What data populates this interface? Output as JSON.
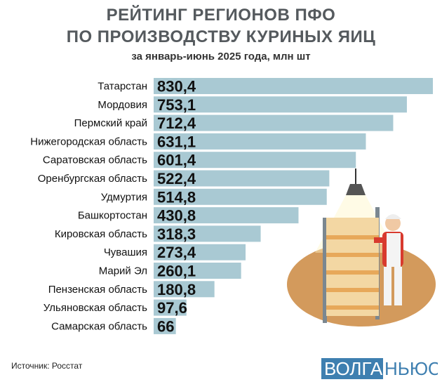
{
  "header": {
    "title_line1": "РЕЙТИНГ РЕГИОНОВ ПФО",
    "title_line2": "ПО ПРОИЗВОДСТВУ КУРИНЫХ ЯИЦ",
    "subtitle": "за январь-июнь 2025 года, млн шт"
  },
  "chart_data": {
    "type": "bar",
    "orientation": "horizontal",
    "title": "РЕЙТИНГ РЕГИОНОВ ПФО ПО ПРОИЗВОДСТВУ КУРИНЫХ ЯИЦ",
    "subtitle": "за январь-июнь 2025 года, млн шт",
    "categories": [
      "Татарстан",
      "Мордовия",
      "Пермский край",
      "Нижегородская область",
      "Саратовская область",
      "Оренбургская область",
      "Удмуртия",
      "Башкортостан",
      "Кировская область",
      "Чувашия",
      "Марий Эл",
      "Пензенская область",
      "Ульяновская область",
      "Самарская область"
    ],
    "values": [
      830.4,
      753.1,
      712.4,
      631.1,
      601.4,
      522.4,
      514.8,
      430.8,
      318.3,
      273.4,
      260.1,
      180.8,
      97.6,
      66
    ],
    "value_labels": [
      "830,4",
      "753,1",
      "712,4",
      "631,1",
      "601,4",
      "522,4",
      "514,8",
      "430,8",
      "318,3",
      "273,4",
      "260,1",
      "180,8",
      "97,6",
      "66"
    ],
    "bar_color": "#a9c9d3",
    "grid": false
  },
  "footer": {
    "source": "Источник: Росстат",
    "logo_part1": "ВОЛГА",
    "logo_part2": "НЬЮС"
  },
  "illustration": {
    "icon": "egg-factory-worker-icon"
  }
}
